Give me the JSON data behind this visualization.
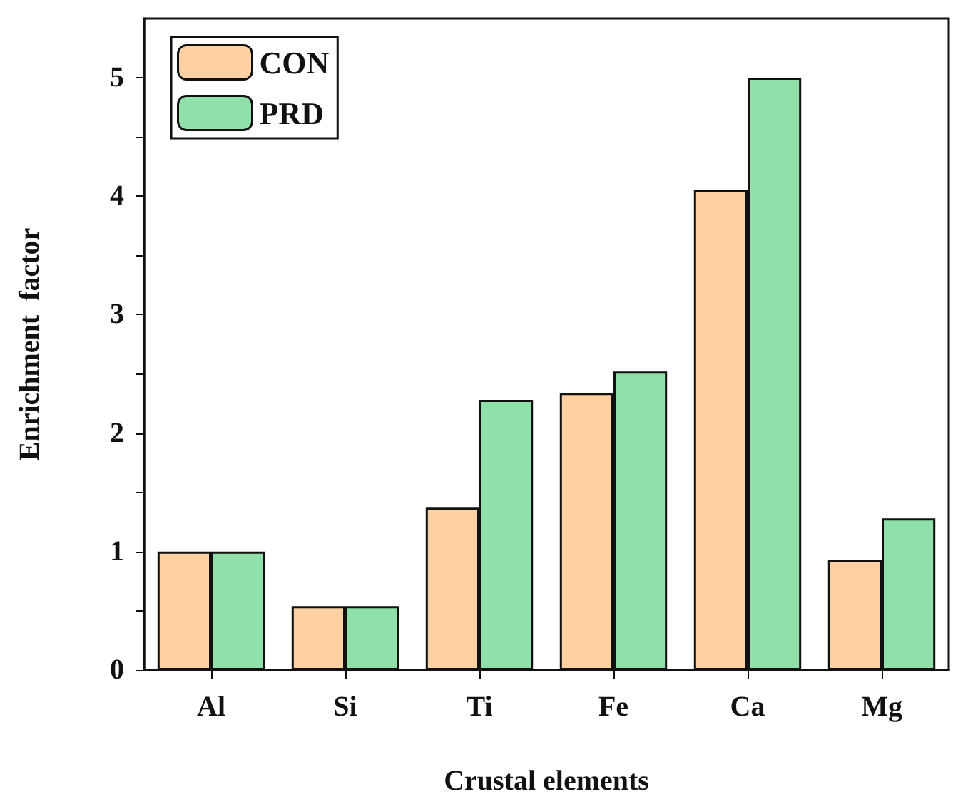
{
  "chart_data": {
    "type": "bar",
    "xlabel": "Crustal elements",
    "ylabel": "Enrichment  factor",
    "categories": [
      "Al",
      "Si",
      "Ti",
      "Fe",
      "Ca",
      "Mg"
    ],
    "series": [
      {
        "name": "CON",
        "color": "#fdd1a1",
        "values": [
          1.0,
          0.54,
          1.37,
          2.34,
          4.05,
          0.93
        ]
      },
      {
        "name": "PRD",
        "color": "#90e0a9",
        "values": [
          1.0,
          0.54,
          2.28,
          2.52,
          5.0,
          1.28
        ]
      }
    ],
    "ylim": [
      0,
      5.5
    ],
    "yticks": [
      0,
      {
        "value": 0.5,
        "label": null
      },
      1,
      {
        "value": 1.5,
        "label": null
      },
      2,
      {
        "value": 2.5,
        "label": null
      },
      3,
      {
        "value": 3.5,
        "label": null
      },
      4,
      {
        "value": 4.5,
        "label": null
      },
      5
    ],
    "grid": false,
    "legend": "top left"
  }
}
